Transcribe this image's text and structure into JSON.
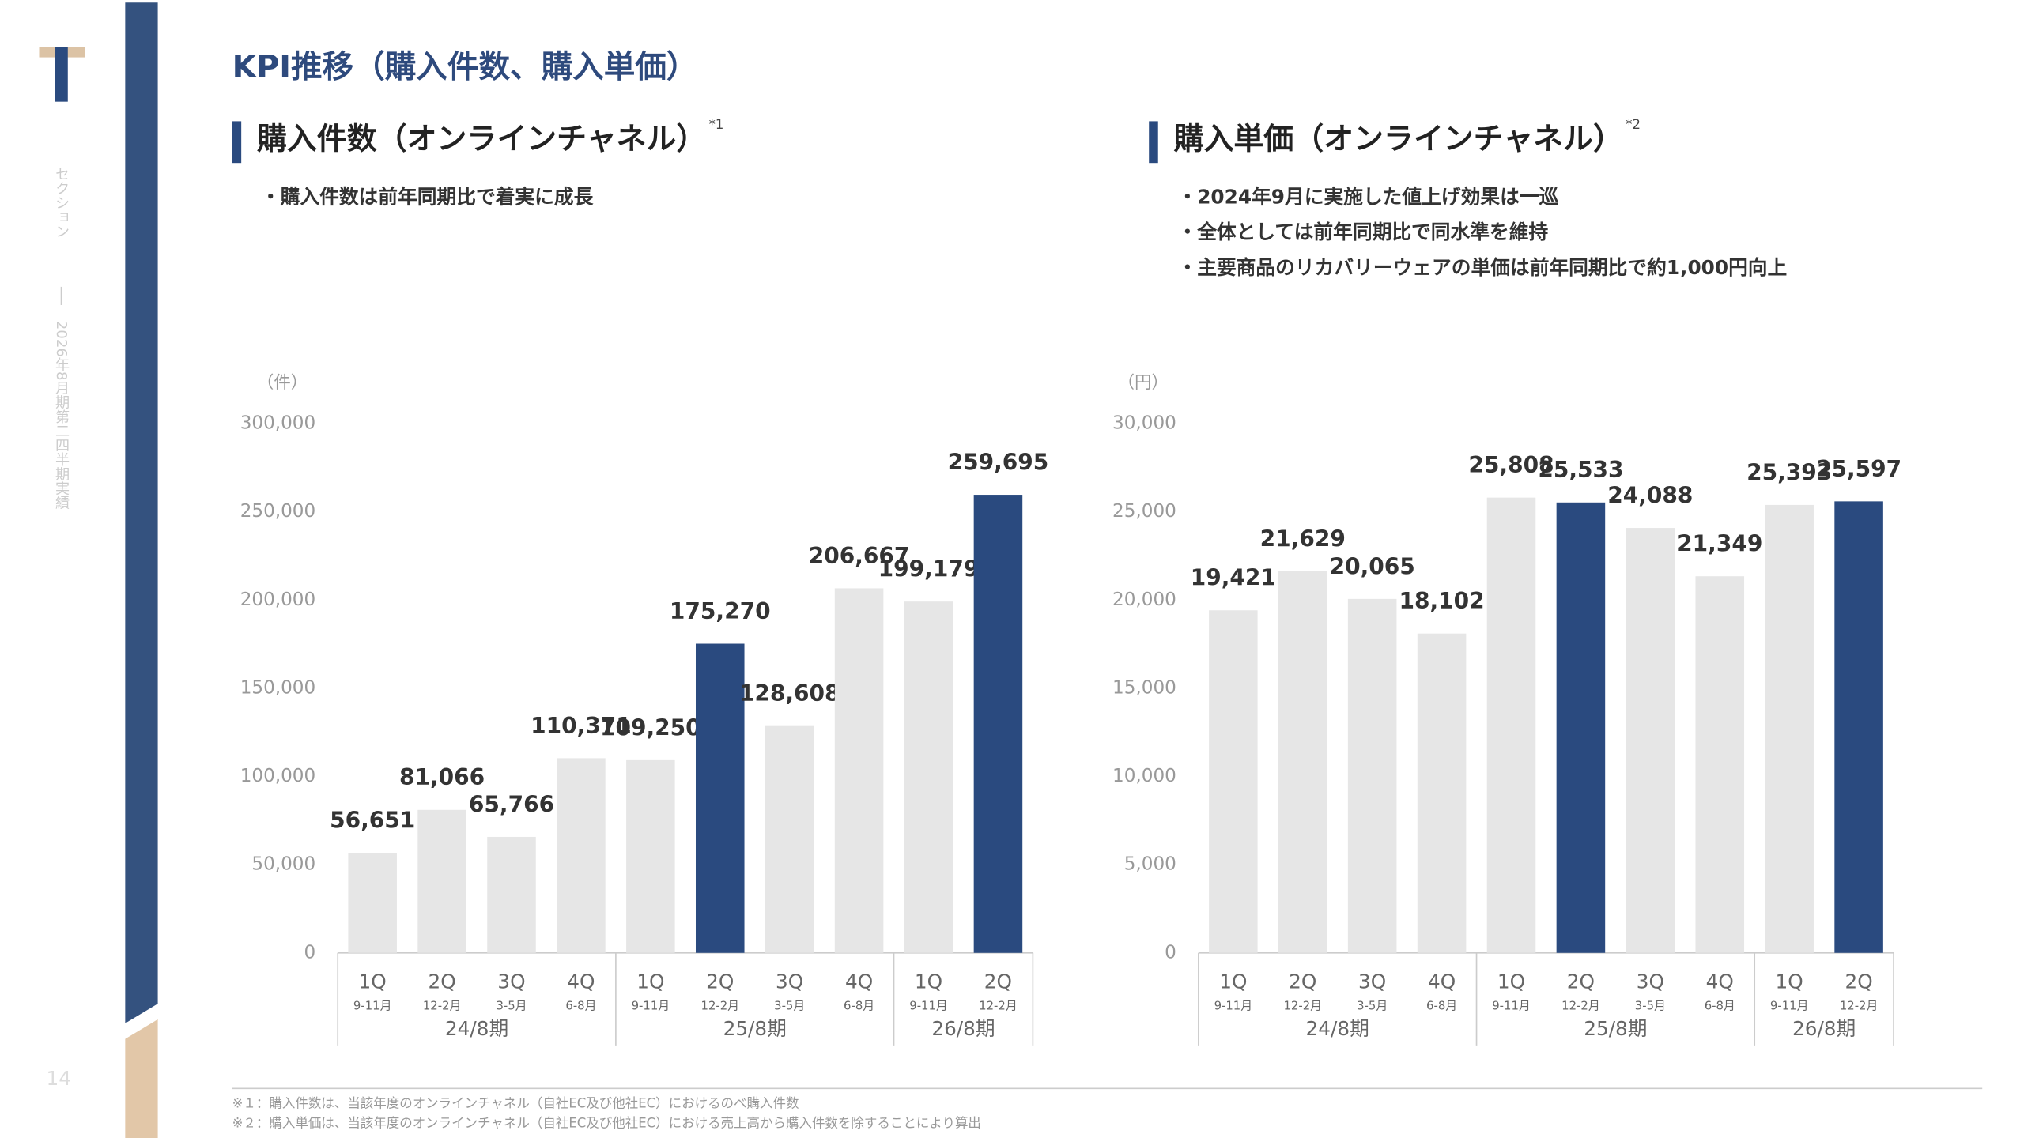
{
  "slide": {
    "title": "KPI推移（購入件数、購入単価）",
    "section": "セクション",
    "period_title": "2026年8月期第二四半期実績",
    "page_number": "14",
    "footnotes": [
      "※１：購入件数は、当該年度のオンラインチャネル（自社EC及び他社EC）におけるのべ購入件数",
      "※２：購入単価は、当該年度のオンラインチャネル（自社EC及び他社EC）における売上高から購入件数を除することにより算出"
    ]
  },
  "chart_data": [
    {
      "type": "bar",
      "title": "購入件数（オンラインチャネル）",
      "note": "*1",
      "bullets": [
        "・購入件数は前年同期比で着実に成長"
      ],
      "unit": "（件）",
      "categories": [
        "1Q",
        "2Q",
        "3Q",
        "4Q",
        "1Q",
        "2Q",
        "3Q",
        "4Q",
        "1Q",
        "2Q"
      ],
      "months": [
        "9-11月",
        "12-2月",
        "3-5月",
        "6-8月",
        "9-11月",
        "12-2月",
        "3-5月",
        "6-8月",
        "9-11月",
        "12-2月"
      ],
      "periods": [
        "24/8期",
        "24/8期",
        "24/8期",
        "24/8期",
        "25/8期",
        "25/8期",
        "25/8期",
        "25/8期",
        "26/8期",
        "26/8期"
      ],
      "values": [
        56651,
        81066,
        65766,
        110371,
        109250,
        175270,
        128608,
        206667,
        199179,
        259695
      ],
      "value_labels": [
        "56,651",
        "81,066",
        "65,766",
        "110,371",
        "109,250",
        "175,270",
        "128,608",
        "206,667",
        "199,179",
        "259,695"
      ],
      "colors": [
        "#e6e6e6",
        "#e6e6e6",
        "#e6e6e6",
        "#e6e6e6",
        "#e6e6e6",
        "#2a4a7f",
        "#e6e6e6",
        "#e6e6e6",
        "#e6e6e6",
        "#2a4a7f"
      ],
      "ylim": [
        0,
        300000
      ],
      "yticks": [
        0,
        {
          "value": 50000,
          "label": "50,000"
        },
        {
          "value": 100000,
          "label": "100,000"
        },
        {
          "value": 150000,
          "label": "150,000"
        },
        {
          "value": 200000,
          "label": "200,000"
        },
        {
          "value": 250000,
          "label": "250,000"
        },
        {
          "value": 300000,
          "label": "300,000"
        }
      ]
    },
    {
      "type": "bar",
      "title": "購入単価（オンラインチャネル）",
      "note": "*2",
      "bullets": [
        "・2024年9月に実施した値上げ効果は一巡",
        "・全体としては前年同期比で同水準を維持",
        "・主要商品のリカバリーウェアの単価は前年同期比で約1,000円向上"
      ],
      "unit": "（円）",
      "categories": [
        "1Q",
        "2Q",
        "3Q",
        "4Q",
        "1Q",
        "2Q",
        "3Q",
        "4Q",
        "1Q",
        "2Q"
      ],
      "months": [
        "9-11月",
        "12-2月",
        "3-5月",
        "6-8月",
        "9-11月",
        "12-2月",
        "3-5月",
        "6-8月",
        "9-11月",
        "12-2月"
      ],
      "periods": [
        "24/8期",
        "24/8期",
        "24/8期",
        "24/8期",
        "25/8期",
        "25/8期",
        "25/8期",
        "25/8期",
        "26/8期",
        "26/8期"
      ],
      "values": [
        19421,
        21629,
        20065,
        18102,
        25808,
        25533,
        24088,
        21349,
        25393,
        25597
      ],
      "value_labels": [
        "19,421",
        "21,629",
        "20,065",
        "18,102",
        "25,808",
        "25,533",
        "24,088",
        "21,349",
        "25,393",
        "25,597"
      ],
      "colors": [
        "#e6e6e6",
        "#e6e6e6",
        "#e6e6e6",
        "#e6e6e6",
        "#e6e6e6",
        "#2a4a7f",
        "#e6e6e6",
        "#e6e6e6",
        "#e6e6e6",
        "#2a4a7f"
      ],
      "ylim": [
        0,
        30000
      ],
      "yticks": [
        0,
        {
          "value": 5000,
          "label": "5,000"
        },
        {
          "value": 10000,
          "label": "10,000"
        },
        {
          "value": 15000,
          "label": "15,000"
        },
        {
          "value": 20000,
          "label": "20,000"
        },
        {
          "value": 25000,
          "label": "25,000"
        },
        {
          "value": 30000,
          "label": "30,000"
        }
      ]
    }
  ]
}
